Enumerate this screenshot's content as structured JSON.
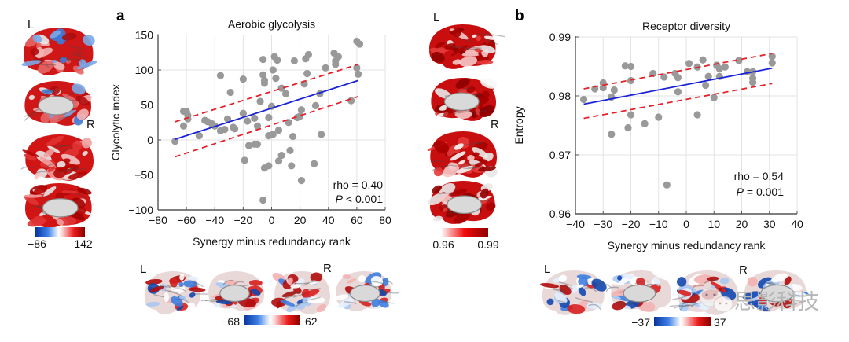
{
  "figure": {
    "watermark": "思影科技"
  },
  "panels": {
    "a": {
      "letter": "a",
      "left_brains": {
        "hemi_left": "L",
        "hemi_right": "R",
        "cbar_min": "−86",
        "cbar_max": "142",
        "cbar_scheme": "blue-white-red"
      },
      "bottom_brains": {
        "hemi_left": "L",
        "hemi_right": "R",
        "cbar_min": "−68",
        "cbar_max": "62",
        "cbar_scheme": "blue-white-red"
      },
      "stats": {
        "rho": "rho = 0.40",
        "p_italic": "P",
        "p_rest": " < 0.001"
      }
    },
    "b": {
      "letter": "b",
      "left_brains": {
        "hemi_left": "L",
        "hemi_right": "R",
        "cbar_min": "0.96",
        "cbar_max": "0.99",
        "cbar_scheme": "white-red"
      },
      "bottom_brains": {
        "hemi_left": "L",
        "hemi_right": "R",
        "cbar_min": "−37",
        "cbar_max": "37",
        "cbar_scheme": "blue-white-red"
      },
      "stats": {
        "rho": "rho = 0.54",
        "p_italic": "P",
        "p_rest": " = 0.001"
      }
    }
  },
  "colors": {
    "points": "#999999",
    "fit": "#1a22d8",
    "ci": "#e8202a",
    "grid": "#e3e3e3",
    "red": "#d50000",
    "blue": "#0b3fb5"
  },
  "chart_data": [
    {
      "type": "scatter",
      "title": "Aerobic glycolysis",
      "xlabel": "Synergy minus redundancy rank",
      "ylabel": "Glycolytic index",
      "xlim": [
        -80,
        80
      ],
      "ylim": [
        -100,
        150
      ],
      "xticks": [
        -80,
        -60,
        -40,
        -20,
        0,
        20,
        40,
        60,
        80
      ],
      "yticks": [
        -100,
        -50,
        0,
        50,
        100,
        150
      ],
      "xtick_labels": [
        "−80",
        "−60",
        "−40",
        "−20",
        "0",
        "20",
        "40",
        "60",
        "80"
      ],
      "ytick_labels": [
        "−100",
        "−50",
        "0",
        "50",
        "100",
        "150"
      ],
      "grid": true,
      "annotation": [
        "rho = 0.40",
        "P < 0.001"
      ],
      "fit_line": {
        "x": [
          -68,
          61
        ],
        "y": [
          1,
          85
        ]
      },
      "ci_upper": {
        "x": [
          -68,
          61
        ],
        "y": [
          26,
          108
        ]
      },
      "ci_lower": {
        "x": [
          -68,
          61
        ],
        "y": [
          -24,
          62
        ]
      },
      "points": [
        [
          -68,
          -2
        ],
        [
          -62,
          41
        ],
        [
          -60,
          41
        ],
        [
          -59,
          35
        ],
        [
          -62,
          20
        ],
        [
          -59,
          30
        ],
        [
          -51,
          6
        ],
        [
          -47,
          28
        ],
        [
          -45,
          26
        ],
        [
          -42,
          23
        ],
        [
          -40,
          20
        ],
        [
          -36,
          13
        ],
        [
          -33,
          15
        ],
        [
          -31,
          30
        ],
        [
          -27,
          18
        ],
        [
          -26,
          16
        ],
        [
          -36,
          92
        ],
        [
          -29,
          68
        ],
        [
          -20,
          87
        ],
        [
          -20,
          38
        ],
        [
          -17,
          27
        ],
        [
          -12,
          31
        ],
        [
          -10,
          20
        ],
        [
          -19,
          -29
        ],
        [
          -16,
          -8
        ],
        [
          -12,
          -6
        ],
        [
          -10,
          -6
        ],
        [
          -8,
          55
        ],
        [
          -6,
          115
        ],
        [
          -6,
          93
        ],
        [
          -5,
          85
        ],
        [
          -5,
          81
        ],
        [
          -2,
          32
        ],
        [
          -2,
          6
        ],
        [
          0,
          48
        ],
        [
          1,
          100
        ],
        [
          2,
          119
        ],
        [
          3,
          88
        ],
        [
          4,
          114
        ],
        [
          1,
          8
        ],
        [
          5,
          14
        ],
        [
          5,
          -30
        ],
        [
          7,
          -22
        ],
        [
          7,
          74
        ],
        [
          10,
          66
        ],
        [
          12,
          25
        ],
        [
          13,
          -15
        ],
        [
          14,
          -37
        ],
        [
          15,
          5
        ],
        [
          16,
          113
        ],
        [
          18,
          32
        ],
        [
          20,
          34
        ],
        [
          21,
          -58
        ],
        [
          21,
          43
        ],
        [
          23,
          80
        ],
        [
          24,
          116
        ],
        [
          25,
          95
        ],
        [
          26,
          122
        ],
        [
          30,
          -34
        ],
        [
          31,
          49
        ],
        [
          35,
          8
        ],
        [
          34,
          66
        ],
        [
          38,
          103
        ],
        [
          44,
          124
        ],
        [
          45,
          113
        ],
        [
          45,
          108
        ],
        [
          47,
          119
        ],
        [
          56,
          56
        ],
        [
          60,
          141
        ],
        [
          62,
          137
        ],
        [
          60,
          103
        ],
        [
          61,
          94
        ],
        [
          -5,
          -40
        ],
        [
          -2,
          -37
        ],
        [
          -6,
          -86
        ]
      ]
    },
    {
      "type": "scatter",
      "title": "Receptor diversity",
      "xlabel": "Synergy minus redundancy rank",
      "ylabel": "Entropy",
      "xlim": [
        -40,
        40
      ],
      "ylim": [
        0.96,
        0.99
      ],
      "xticks": [
        -40,
        -30,
        -20,
        -10,
        0,
        10,
        20,
        30,
        40
      ],
      "yticks": [
        0.96,
        0.97,
        0.98,
        0.99
      ],
      "xtick_labels": [
        "−40",
        "−30",
        "−20",
        "−10",
        "0",
        "10",
        "20",
        "30",
        "40"
      ],
      "ytick_labels": [
        "0.96",
        "0.97",
        "0.98",
        "0.99"
      ],
      "grid": true,
      "annotation": [
        "rho = 0.54",
        "P = 0.001"
      ],
      "fit_line": {
        "x": [
          -37,
          31
        ],
        "y": [
          0.9786,
          0.9847
        ]
      },
      "ci_upper": {
        "x": [
          -37,
          31
        ],
        "y": [
          0.9812,
          0.9872
        ]
      },
      "ci_lower": {
        "x": [
          -37,
          31
        ],
        "y": [
          0.9762,
          0.9821
        ]
      },
      "points": [
        [
          -37,
          0.9794
        ],
        [
          -33,
          0.9812
        ],
        [
          -30,
          0.9822
        ],
        [
          -30,
          0.9814
        ],
        [
          -27,
          0.9798
        ],
        [
          -26,
          0.981
        ],
        [
          -22,
          0.9851
        ],
        [
          -20,
          0.985
        ],
        [
          -20,
          0.9826
        ],
        [
          -27,
          0.9735
        ],
        [
          -20,
          0.9768
        ],
        [
          -21,
          0.9746
        ],
        [
          -15,
          0.9753
        ],
        [
          -10,
          0.9764
        ],
        [
          -12,
          0.9838
        ],
        [
          -8,
          0.9832
        ],
        [
          -4,
          0.9838
        ],
        [
          -3,
          0.9831
        ],
        [
          -3,
          0.9807
        ],
        [
          -7,
          0.9649
        ],
        [
          1,
          0.9855
        ],
        [
          4,
          0.9849
        ],
        [
          4,
          0.9768
        ],
        [
          6,
          0.9861
        ],
        [
          7,
          0.9818
        ],
        [
          8,
          0.9833
        ],
        [
          10,
          0.9797
        ],
        [
          11,
          0.9852
        ],
        [
          12,
          0.9846
        ],
        [
          12,
          0.9833
        ],
        [
          14,
          0.9849
        ],
        [
          19,
          0.986
        ],
        [
          22,
          0.9841
        ],
        [
          24,
          0.9841
        ],
        [
          24,
          0.983
        ],
        [
          24,
          0.9823
        ],
        [
          31,
          0.9867
        ],
        [
          31,
          0.9856
        ]
      ]
    }
  ]
}
